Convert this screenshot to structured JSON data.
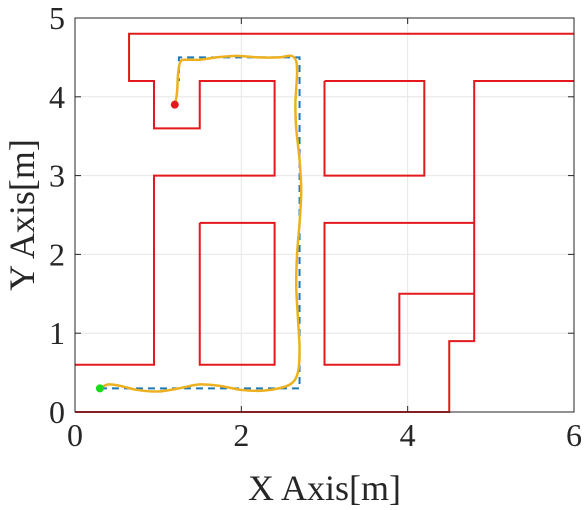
{
  "chart_data": {
    "type": "line",
    "xlabel": "X Axis[m]",
    "ylabel": "Y Axis[m]",
    "xlim": [
      0,
      6
    ],
    "ylim": [
      0,
      5
    ],
    "xticks": [
      "0",
      "2",
      "4",
      "6"
    ],
    "yticks": [
      "0",
      "1",
      "2",
      "3",
      "4",
      "5"
    ],
    "grid": true,
    "colors": {
      "walls": "#e3191c",
      "planned_path": "#1f77b4",
      "trajectory": "#edb120",
      "start_point": "#1adb1a",
      "goal_point": "#e3191c",
      "grid": "#e6e6e6",
      "axes": "#262626"
    },
    "walls": [
      [
        [
          0,
          0
        ],
        [
          4.5,
          0
        ],
        [
          4.5,
          0.9
        ],
        [
          4.8,
          0.9
        ],
        [
          4.8,
          4.2
        ],
        [
          6.0,
          4.2
        ]
      ],
      [
        [
          6.0,
          4.8
        ],
        [
          0.65,
          4.8
        ],
        [
          0.65,
          4.2
        ],
        [
          0.95,
          4.2
        ],
        [
          0.95,
          3.6
        ],
        [
          1.5,
          3.6
        ],
        [
          1.5,
          4.2
        ],
        [
          2.4,
          4.2
        ],
        [
          2.4,
          3.0
        ],
        [
          0.95,
          3.0
        ],
        [
          0.95,
          0.6
        ],
        [
          0,
          0.6
        ]
      ],
      [
        [
          1.5,
          2.4
        ],
        [
          2.4,
          2.4
        ],
        [
          2.4,
          0.6
        ],
        [
          1.5,
          0.6
        ],
        [
          1.5,
          2.4
        ]
      ],
      [
        [
          3.0,
          4.2
        ],
        [
          4.2,
          4.2
        ],
        [
          4.2,
          3.0
        ],
        [
          3.0,
          3.0
        ],
        [
          3.0,
          4.2
        ]
      ],
      [
        [
          4.8,
          2.4
        ],
        [
          3.0,
          2.4
        ],
        [
          3.0,
          0.6
        ],
        [
          3.9,
          0.6
        ],
        [
          3.9,
          1.5
        ],
        [
          4.8,
          1.5
        ]
      ]
    ],
    "planned_path": {
      "x": [
        0.3,
        2.7,
        2.7,
        1.25,
        1.25
      ],
      "y": [
        0.3,
        0.3,
        4.5,
        4.5,
        4.2
      ]
    },
    "trajectory": {
      "x": [
        0.3,
        0.4,
        0.55,
        0.75,
        1.0,
        1.25,
        1.5,
        1.75,
        2.0,
        2.25,
        2.45,
        2.6,
        2.68,
        2.7,
        2.68,
        2.66,
        2.67,
        2.7,
        2.72,
        2.7,
        2.66,
        2.65,
        2.66,
        2.67,
        2.66,
        2.6,
        2.45,
        2.2,
        1.95,
        1.7,
        1.5,
        1.35,
        1.27,
        1.24,
        1.23,
        1.22,
        1.2
      ],
      "y": [
        0.3,
        0.35,
        0.33,
        0.28,
        0.26,
        0.3,
        0.35,
        0.33,
        0.28,
        0.27,
        0.3,
        0.36,
        0.5,
        0.8,
        1.2,
        1.6,
        2.0,
        2.4,
        2.8,
        3.2,
        3.6,
        3.9,
        4.1,
        4.3,
        4.45,
        4.52,
        4.5,
        4.5,
        4.52,
        4.5,
        4.47,
        4.47,
        4.45,
        4.3,
        4.1,
        4.0,
        3.9
      ]
    },
    "start_point": {
      "x": 0.3,
      "y": 0.3
    },
    "goal_point": {
      "x": 1.2,
      "y": 3.9
    }
  }
}
